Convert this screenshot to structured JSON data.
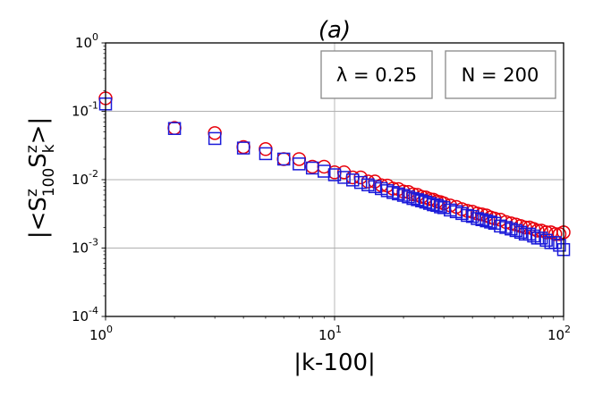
{
  "chart_data": {
    "type": "scatter",
    "title": "(a)",
    "xlabel": "|k-100|",
    "ylabel": "|<S^z_100 S^z_k>|",
    "xscale": "log",
    "yscale": "log",
    "xlim": [
      1,
      100
    ],
    "ylim": [
      0.0001,
      1
    ],
    "x_ticks": [
      {
        "value": 1,
        "base": "10",
        "exp": "0"
      },
      {
        "value": 10,
        "base": "10",
        "exp": "1"
      },
      {
        "value": 100,
        "base": "10",
        "exp": "2"
      }
    ],
    "y_ticks": [
      {
        "value": 0.0001,
        "base": "10",
        "exp": "-4"
      },
      {
        "value": 0.001,
        "base": "10",
        "exp": "-3"
      },
      {
        "value": 0.01,
        "base": "10",
        "exp": "-2"
      },
      {
        "value": 0.1,
        "base": "10",
        "exp": "-1"
      },
      {
        "value": 1,
        "base": "10",
        "exp": "0"
      }
    ],
    "grid": true,
    "annotations": {
      "lambda_label": "λ = 0.25",
      "n_label": "N = 200"
    },
    "series": [
      {
        "marker": "circle",
        "color": "#e8000b",
        "x": [
          1,
          2,
          3,
          4,
          5,
          6,
          7,
          8,
          9,
          10,
          11,
          12,
          13,
          14,
          15,
          16,
          17,
          18,
          19,
          20,
          21,
          22,
          23,
          24,
          25,
          26,
          27,
          28,
          29,
          30,
          32,
          34,
          36,
          38,
          40,
          42,
          44,
          46,
          48,
          50,
          53,
          56,
          59,
          62,
          65,
          68,
          71,
          74,
          77,
          80,
          84,
          88,
          92,
          96,
          100
        ],
        "y": [
          0.155,
          0.057,
          0.048,
          0.03,
          0.028,
          0.02,
          0.02,
          0.0155,
          0.0155,
          0.0128,
          0.0128,
          0.0108,
          0.0108,
          0.0094,
          0.0094,
          0.0083,
          0.0082,
          0.0074,
          0.0073,
          0.0067,
          0.0066,
          0.0061,
          0.006,
          0.0056,
          0.0055,
          0.0052,
          0.0051,
          0.0048,
          0.0047,
          0.0045,
          0.0042,
          0.004,
          0.0037,
          0.0035,
          0.0034,
          0.0032,
          0.0031,
          0.003,
          0.0028,
          0.0027,
          0.0026,
          0.0024,
          0.0023,
          0.0022,
          0.0021,
          0.002,
          0.002,
          0.0019,
          0.0018,
          0.0018,
          0.0017,
          0.0017,
          0.0016,
          0.0016,
          0.0017
        ]
      },
      {
        "marker": "square",
        "color": "#1a1ad9",
        "x": [
          1,
          2,
          3,
          4,
          5,
          6,
          7,
          8,
          9,
          10,
          11,
          12,
          13,
          14,
          15,
          16,
          17,
          18,
          19,
          20,
          21,
          22,
          23,
          24,
          25,
          26,
          27,
          28,
          29,
          30,
          32,
          34,
          36,
          38,
          40,
          42,
          44,
          46,
          48,
          50,
          53,
          56,
          59,
          62,
          65,
          68,
          71,
          74,
          77,
          80,
          84,
          88,
          92,
          96,
          100
        ],
        "y": [
          0.128,
          0.056,
          0.04,
          0.029,
          0.024,
          0.02,
          0.017,
          0.0148,
          0.0133,
          0.0118,
          0.0108,
          0.0099,
          0.0091,
          0.0084,
          0.0079,
          0.0074,
          0.0069,
          0.0065,
          0.0062,
          0.0059,
          0.0056,
          0.0053,
          0.0051,
          0.0049,
          0.0047,
          0.0045,
          0.0043,
          0.0042,
          0.004,
          0.0039,
          0.0036,
          0.0034,
          0.0032,
          0.003,
          0.0029,
          0.0027,
          0.0026,
          0.0025,
          0.0024,
          0.0023,
          0.0021,
          0.002,
          0.0019,
          0.0018,
          0.0017,
          0.0016,
          0.0016,
          0.0015,
          0.0014,
          0.0014,
          0.0013,
          0.0012,
          0.0012,
          0.0011,
          0.00095
        ]
      }
    ]
  }
}
